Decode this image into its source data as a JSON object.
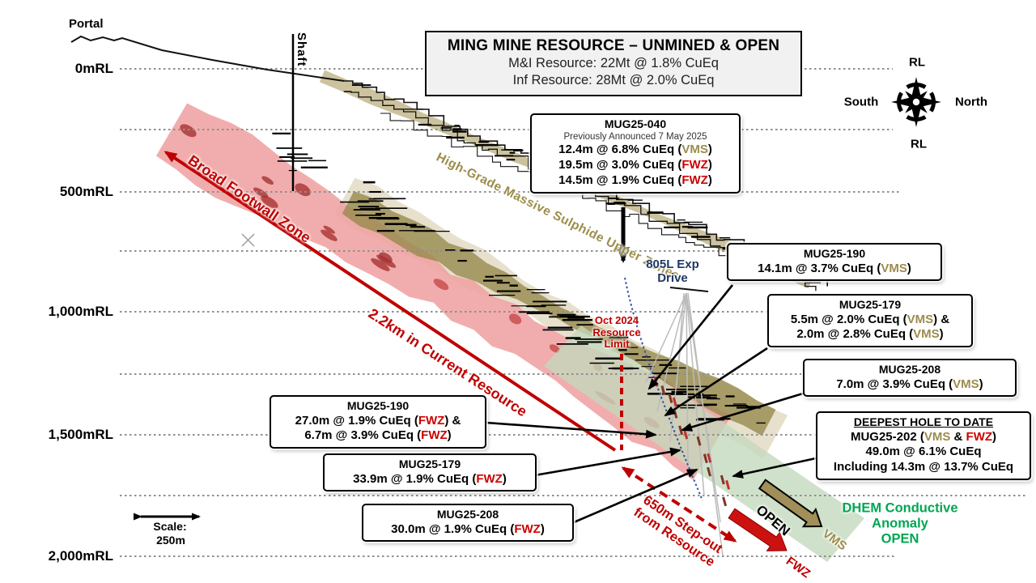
{
  "title_box": {
    "title": "MING MINE RESOURCE – UNMINED & OPEN",
    "mi_resource": "M&I Resource: 22Mt @ 1.8% CuEq",
    "inf_resource": "Inf Resource: 28Mt @ 2.0% CuEq"
  },
  "compass": {
    "top": "RL",
    "bottom": "RL",
    "left": "South",
    "right": "North"
  },
  "axis": {
    "portal": "Portal",
    "shaft": "Shaft",
    "ticks": [
      "0mRL",
      "500mRL",
      "1,000mRL",
      "1,500mRL",
      "2,000mRL"
    ]
  },
  "scale": {
    "label": "Scale:",
    "value": "250m"
  },
  "annotations": {
    "high_grade": "High-Grade Massive Sulphide Upper Zones",
    "broad_footwall": "Broad Footwall Zone",
    "current_resource": "2.2km in Current Resource",
    "step_out": "650m Step-out\nfrom Resource",
    "oct_limit": "Oct 2024\nResource\nLimit",
    "drive_805": "805L Exp\nDrive",
    "dhem": "DHEM Conductive\nAnomaly\nOPEN",
    "open_label": "OPEN",
    "vms_label": "VMS",
    "fwz_label": "FWZ"
  },
  "colors": {
    "vms": "#9c8b4d",
    "fwz": "#cc0000",
    "annotation_red": "#c00000",
    "dhem_green": "#00a651",
    "drive_navy": "#1f3864",
    "zone_pink": "#efa2a2",
    "zone_olive": "#97894e",
    "zone_tan": "#cdc29b",
    "zone_green": "#c3d9bd"
  },
  "callouts": [
    {
      "id": "mug25-040",
      "lines": [
        {
          "style": "title",
          "segs": [
            {
              "t": "MUG25-040"
            }
          ]
        },
        {
          "style": "small",
          "segs": [
            {
              "t": "Previously Announced 7 May 2025"
            }
          ]
        },
        {
          "style": "data",
          "segs": [
            {
              "t": "12.4m @ 6.8% CuEq ("
            },
            {
              "t": "VMS",
              "c": "vms"
            },
            {
              "t": ")"
            }
          ]
        },
        {
          "style": "data",
          "segs": [
            {
              "t": "19.5m @ 3.0% CuEq ("
            },
            {
              "t": "FWZ",
              "c": "fwz"
            },
            {
              "t": ")"
            }
          ]
        },
        {
          "style": "data",
          "segs": [
            {
              "t": "14.5m @ 1.9% CuEq ("
            },
            {
              "t": "FWZ",
              "c": "fwz"
            },
            {
              "t": ")"
            }
          ]
        }
      ]
    },
    {
      "id": "mug25-190-vms",
      "lines": [
        {
          "style": "title",
          "segs": [
            {
              "t": "MUG25-190"
            }
          ]
        },
        {
          "style": "data",
          "segs": [
            {
              "t": "14.1m @ 3.7% CuEq ("
            },
            {
              "t": "VMS",
              "c": "vms"
            },
            {
              "t": ")"
            }
          ]
        }
      ]
    },
    {
      "id": "mug25-179-vms",
      "lines": [
        {
          "style": "title",
          "segs": [
            {
              "t": "MUG25-179"
            }
          ]
        },
        {
          "style": "data",
          "segs": [
            {
              "t": "5.5m @ 2.0% CuEq ("
            },
            {
              "t": "VMS",
              "c": "vms"
            },
            {
              "t": ") &"
            }
          ]
        },
        {
          "style": "data",
          "segs": [
            {
              "t": "2.0m @ 2.8% CuEq ("
            },
            {
              "t": "VMS",
              "c": "vms"
            },
            {
              "t": ")"
            }
          ]
        }
      ]
    },
    {
      "id": "mug25-208-vms",
      "lines": [
        {
          "style": "title",
          "segs": [
            {
              "t": "MUG25-208"
            }
          ]
        },
        {
          "style": "data",
          "segs": [
            {
              "t": "7.0m @ 3.9% CuEq ("
            },
            {
              "t": "VMS",
              "c": "vms"
            },
            {
              "t": ")"
            }
          ]
        }
      ]
    },
    {
      "id": "deepest-hole",
      "lines": [
        {
          "style": "title_u",
          "segs": [
            {
              "t": "DEEPEST HOLE TO DATE"
            }
          ]
        },
        {
          "style": "data",
          "segs": [
            {
              "t": "MUG25-202 ("
            },
            {
              "t": "VMS",
              "c": "vms"
            },
            {
              "t": " & "
            },
            {
              "t": "FWZ",
              "c": "fwz"
            },
            {
              "t": ")"
            }
          ]
        },
        {
          "style": "data",
          "segs": [
            {
              "t": "49.0m @ 6.1% CuEq"
            }
          ]
        },
        {
          "style": "data",
          "segs": [
            {
              "t": "Including 14.3m @ 13.7% CuEq"
            }
          ]
        }
      ]
    },
    {
      "id": "mug25-190-fwz",
      "lines": [
        {
          "style": "title",
          "segs": [
            {
              "t": "MUG25-190"
            }
          ]
        },
        {
          "style": "data",
          "segs": [
            {
              "t": "27.0m @ 1.9% CuEq ("
            },
            {
              "t": "FWZ",
              "c": "fwz"
            },
            {
              "t": ") &"
            }
          ]
        },
        {
          "style": "data",
          "segs": [
            {
              "t": "6.7m @ 3.9% CuEq ("
            },
            {
              "t": "FWZ",
              "c": "fwz"
            },
            {
              "t": ")"
            }
          ]
        }
      ]
    },
    {
      "id": "mug25-179-fwz",
      "lines": [
        {
          "style": "title",
          "segs": [
            {
              "t": "MUG25-179"
            }
          ]
        },
        {
          "style": "data",
          "segs": [
            {
              "t": "33.9m @ 1.9% CuEq ("
            },
            {
              "t": "FWZ",
              "c": "fwz"
            },
            {
              "t": ")"
            }
          ]
        }
      ]
    },
    {
      "id": "mug25-208-fwz",
      "lines": [
        {
          "style": "title",
          "segs": [
            {
              "t": "MUG25-208"
            }
          ]
        },
        {
          "style": "data",
          "segs": [
            {
              "t": "30.0m @ 1.9% CuEq ("
            },
            {
              "t": "FWZ",
              "c": "fwz"
            },
            {
              "t": ")"
            }
          ]
        }
      ]
    }
  ]
}
